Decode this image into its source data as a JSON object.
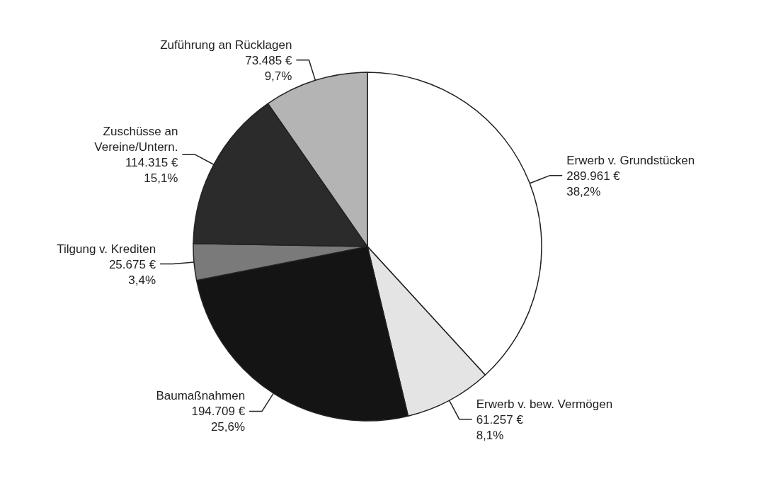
{
  "chart_data": {
    "type": "pie",
    "categories": [
      "Erwerb v. Grundstücken",
      "Erwerb v. bew. Vermögen",
      "Baumaßnahmen",
      "Tilgung v. Krediten",
      "Zuschüsse an Vereine/Untern.",
      "Zuführung an Rücklagen"
    ],
    "values": [
      289961,
      61257,
      194709,
      25675,
      114315,
      73485
    ],
    "colors": [
      "#ffffff",
      "#e4e4e4",
      "#141414",
      "#7a7a7a",
      "#2b2b2b",
      "#b4b4b4"
    ],
    "value_labels": [
      "289.961 €\n38,2%",
      "61.257 €\n8,1%",
      "194.709 €\n25,6%",
      "25.675 €\n3,4%",
      "114.315 €\n15,1%",
      "73.485 €\n9,7%"
    ]
  }
}
